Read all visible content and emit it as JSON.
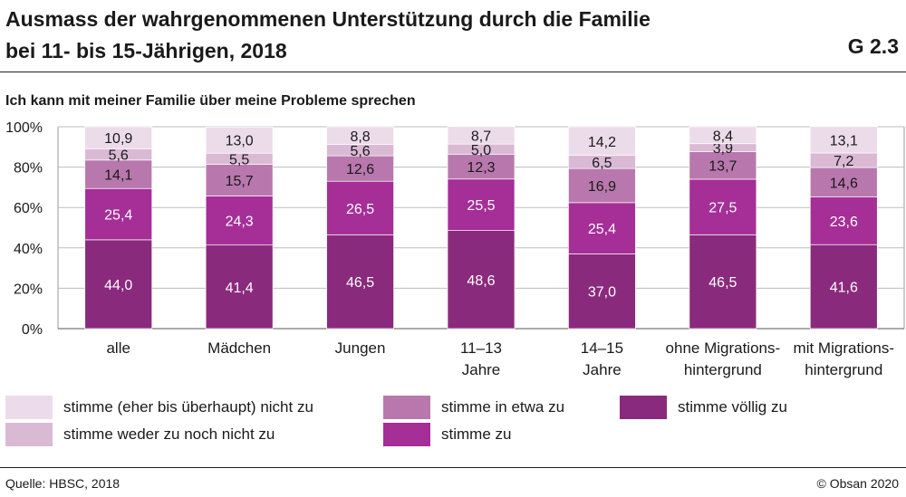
{
  "header": {
    "title_line1": "Ausmass der wahrgenommenen Unterstützung durch die Familie",
    "title_line2": "bei 11- bis 15-Jährigen, 2018",
    "code": "G 2.3",
    "subtitle": "Ich kann mit meiner Familie über meine Probleme sprechen"
  },
  "footer": {
    "source": "Quelle: HBSC, 2018",
    "copyright": "© Obsan 2020"
  },
  "colors": {
    "stimme_voellig_zu": "#8a2a7c",
    "stimme_zu": "#a52e97",
    "stimme_in_etwa_zu": "#b878ad",
    "stimme_weder_zu_noch_nicht_zu": "#dab9d5",
    "stimme_nicht_zu": "#ecdcea"
  },
  "chart_data": {
    "type": "bar",
    "stacked": true,
    "ylim": [
      0,
      100
    ],
    "yticks": [
      "0%",
      "20%",
      "40%",
      "60%",
      "80%",
      "100%"
    ],
    "categories": [
      [
        "alle"
      ],
      [
        "Mädchen"
      ],
      [
        "Jungen"
      ],
      [
        "11–13",
        "Jahre"
      ],
      [
        "14–15",
        "Jahre"
      ],
      [
        "ohne Migrations-",
        "hintergrund"
      ],
      [
        "mit Migrations-",
        "hintergrund"
      ]
    ],
    "series": [
      {
        "name": "stimme völlig zu",
        "key": "stimme_voellig_zu",
        "values": [
          44.0,
          41.4,
          46.5,
          48.6,
          37.0,
          46.5,
          41.6
        ],
        "labels": [
          "44,0",
          "41,4",
          "46,5",
          "48,6",
          "37,0",
          "46,5",
          "41,6"
        ]
      },
      {
        "name": "stimme zu",
        "key": "stimme_zu",
        "values": [
          25.4,
          24.3,
          26.5,
          25.5,
          25.4,
          27.5,
          23.6
        ],
        "labels": [
          "25,4",
          "24,3",
          "26,5",
          "25,5",
          "25,4",
          "27,5",
          "23,6"
        ]
      },
      {
        "name": "stimme in etwa zu",
        "key": "stimme_in_etwa_zu",
        "values": [
          14.1,
          15.7,
          12.6,
          12.3,
          16.9,
          13.7,
          14.6
        ],
        "labels": [
          "14,1",
          "15,7",
          "12,6",
          "12,3",
          "16,9",
          "13,7",
          "14,6"
        ]
      },
      {
        "name": "stimme weder zu noch nicht zu",
        "key": "stimme_weder_zu_noch_nicht_zu",
        "values": [
          5.6,
          5.5,
          5.6,
          5.0,
          6.5,
          3.9,
          7.2
        ],
        "labels": [
          "5,6",
          "5,5",
          "5,6",
          "5,0",
          "6,5",
          "3,9",
          "7,2"
        ]
      },
      {
        "name": "stimme (eher bis überhaupt) nicht zu",
        "key": "stimme_nicht_zu",
        "values": [
          10.9,
          13.0,
          8.8,
          8.7,
          14.2,
          8.4,
          13.1
        ],
        "labels": [
          "10,9",
          "13,0",
          "8,8",
          "8,7",
          "14,2",
          "8,4",
          "13,1"
        ]
      }
    ],
    "legend": [
      {
        "label": "stimme (eher bis überhaupt) nicht zu",
        "key": "stimme_nicht_zu"
      },
      {
        "label": "stimme in etwa zu",
        "key": "stimme_in_etwa_zu"
      },
      {
        "label": "stimme völlig zu",
        "key": "stimme_voellig_zu"
      },
      {
        "label": "stimme weder zu noch nicht zu",
        "key": "stimme_weder_zu_noch_nicht_zu"
      },
      {
        "label": "stimme zu",
        "key": "stimme_zu"
      }
    ]
  }
}
